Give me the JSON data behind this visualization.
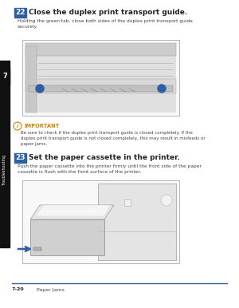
{
  "bg_color": "#ffffff",
  "sidebar_color": "#111111",
  "sidebar_label": "Troubleshooting",
  "sidebar_number": "7",
  "blue_color": "#2e5fa3",
  "step22_num": "22",
  "step22_title": "Close the duplex print transport guide.",
  "step22_body": "Holding the green tab, close both sides of the duplex print transport guide\nsecurely.",
  "important_label": "IMPORTANT",
  "important_color": "#c8860a",
  "important_body": "Be sure to check if the duplex print transport guide is closed completely. If the\nduplex print transport guide is not closed completely, this may result in misfeeds or\npaper jams.",
  "step23_num": "23",
  "step23_title": "Set the paper cassette in the printer.",
  "step23_body": "Push the paper cassette into the printer firmly until the front side of the paper\ncassette is flush with the front surface of the printer.",
  "footer_line_color": "#2e5fa3",
  "footer_page": "7-20",
  "footer_chapter": "Paper Jams",
  "text_color": "#222222",
  "small_text_color": "#444444",
  "img_border_color": "#aaaaaa",
  "img_bg": "#f8f8f8"
}
